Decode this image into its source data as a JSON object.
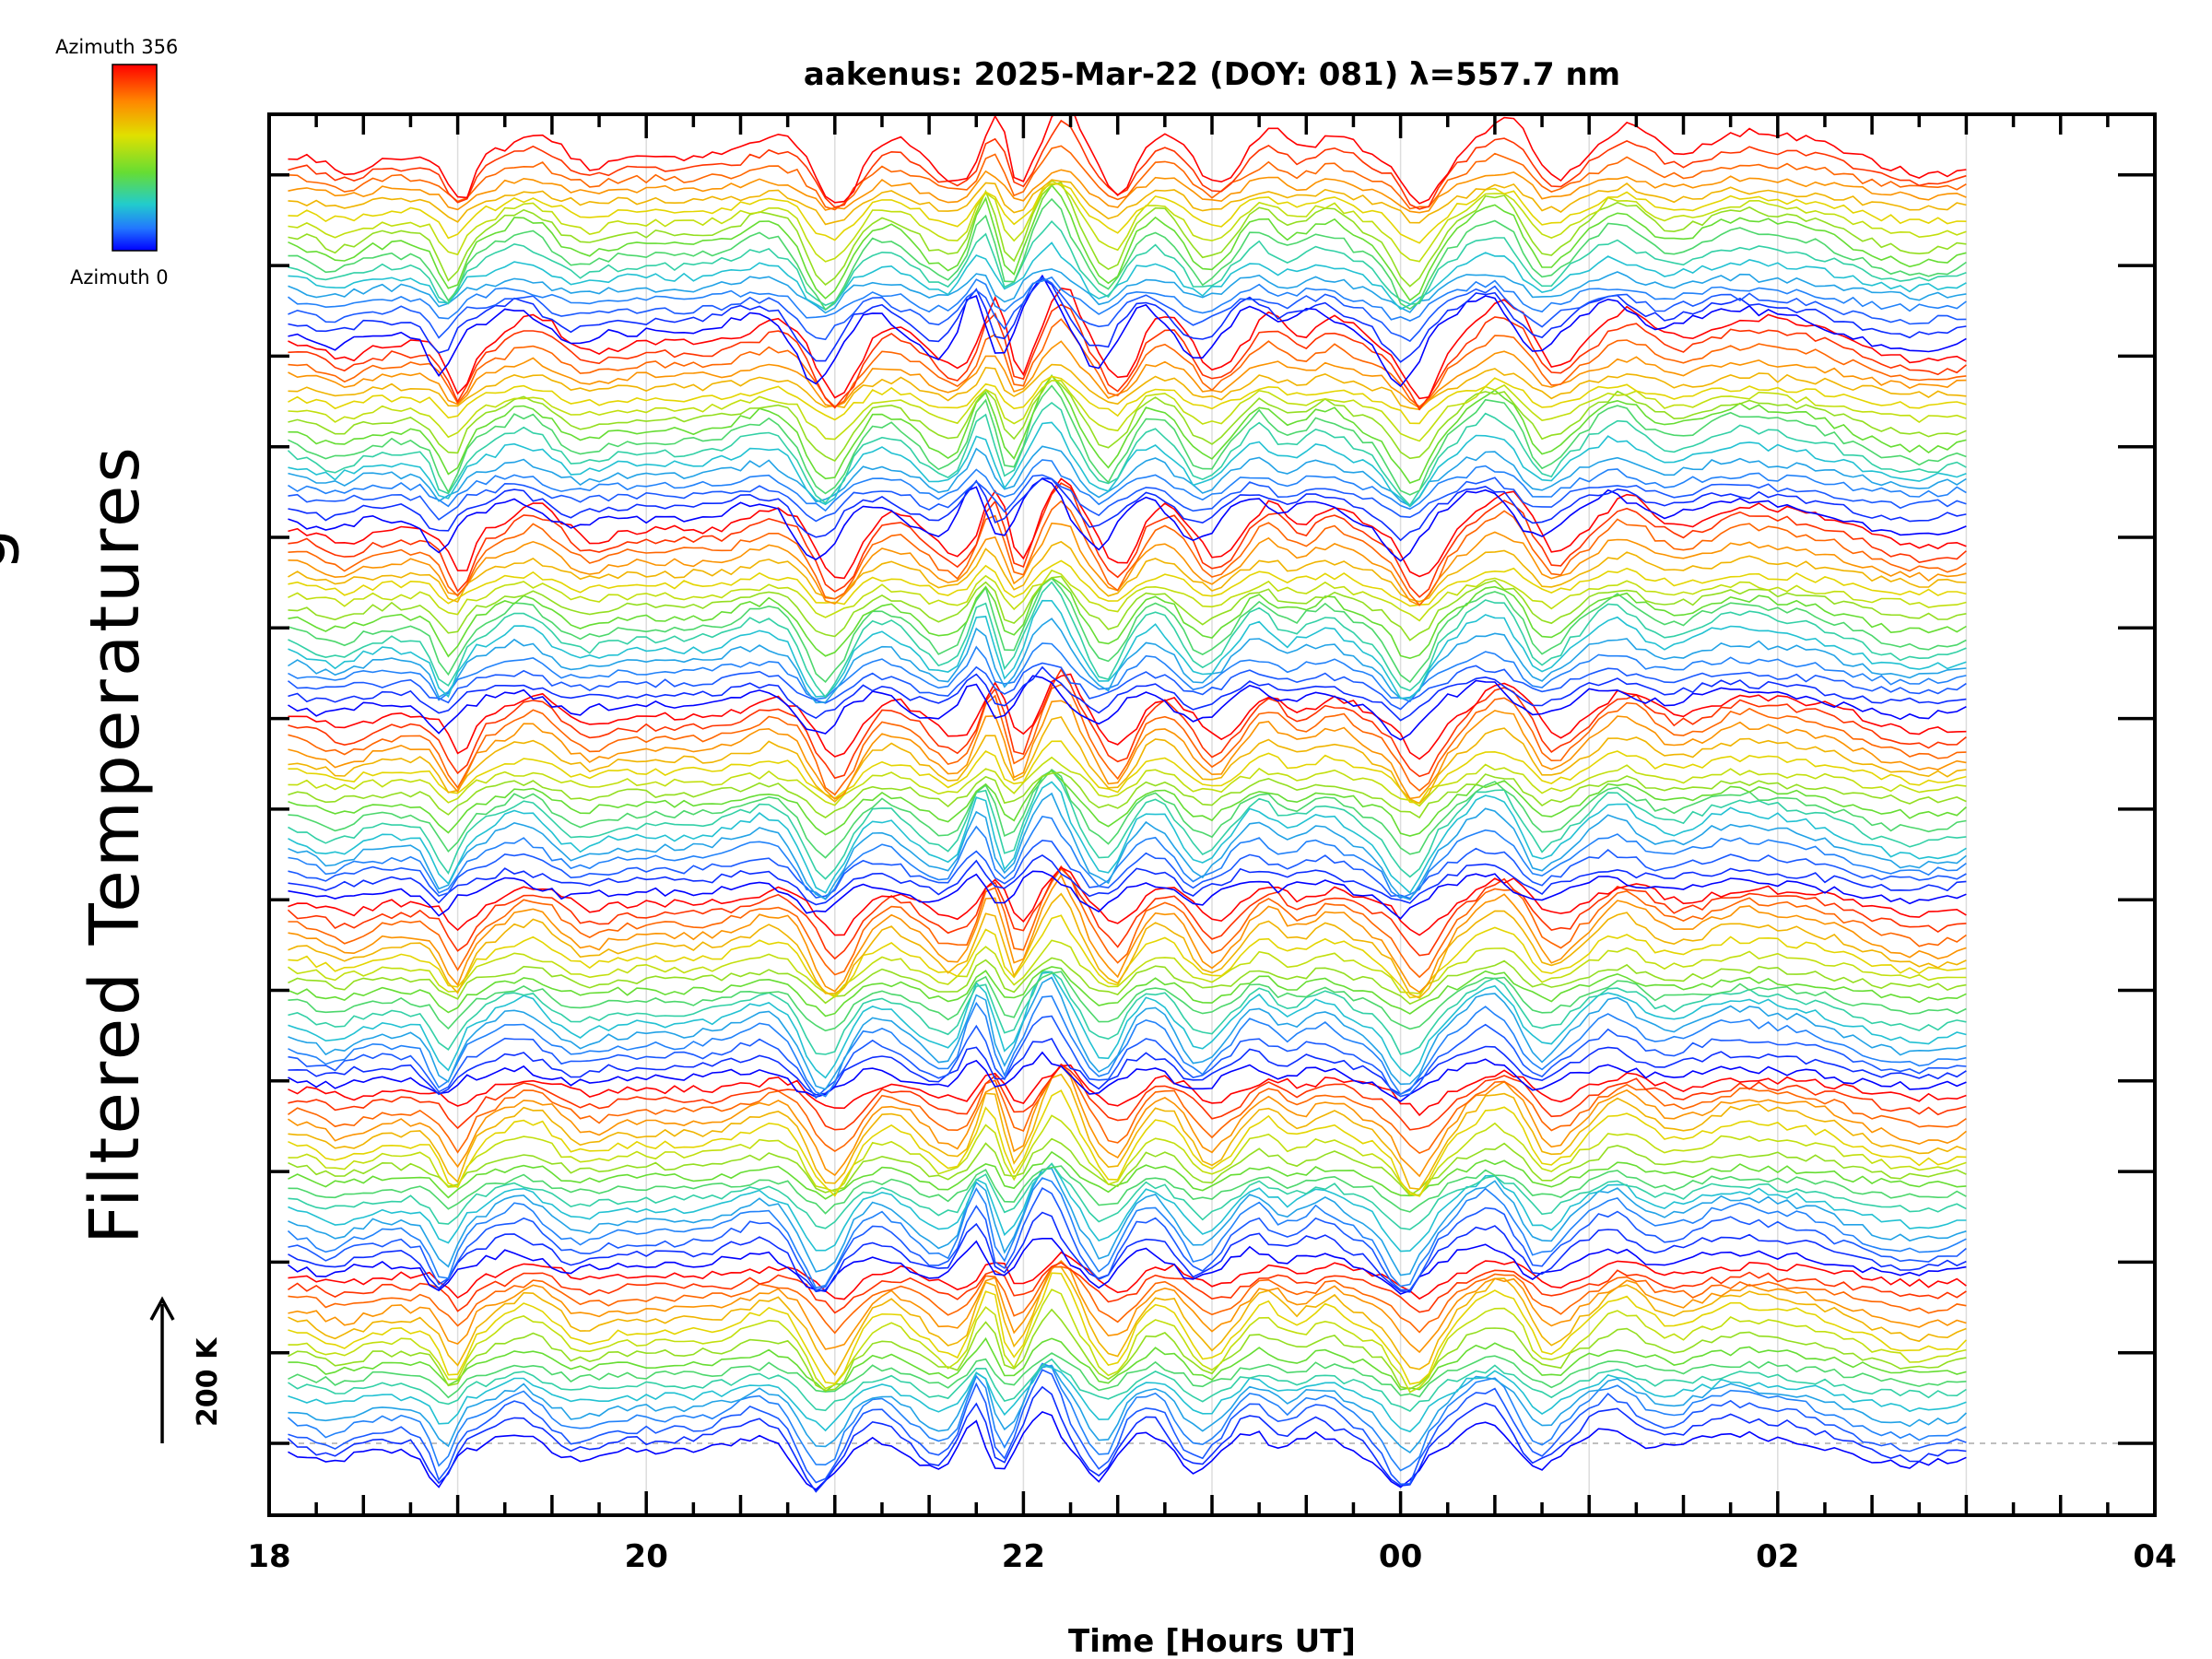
{
  "chart_data": {
    "type": "line",
    "title": "aakenus: 2025-Mar-22 (DOY: 081) λ=557.7 nm",
    "xlabel": "Time [Hours UT]",
    "ylabel": "Filtered Temperatures",
    "ylabel_partial": "g",
    "x_ticks": [
      "18",
      "20",
      "22",
      "00",
      "02",
      "04"
    ],
    "xlim": [
      18,
      28
    ],
    "x_data_range": [
      18.1,
      27.0
    ],
    "scale_bar_label": "200 K",
    "colorbar": {
      "top_label": "Azimuth 356",
      "bottom_label": "Azimuth 0",
      "colors": [
        "#ff0000",
        "#ff8800",
        "#e0e000",
        "#66dd33",
        "#22cccc",
        "#2277ff",
        "#0000ff"
      ]
    },
    "series_groups": 7,
    "traces_per_group": 17,
    "grid": true
  }
}
